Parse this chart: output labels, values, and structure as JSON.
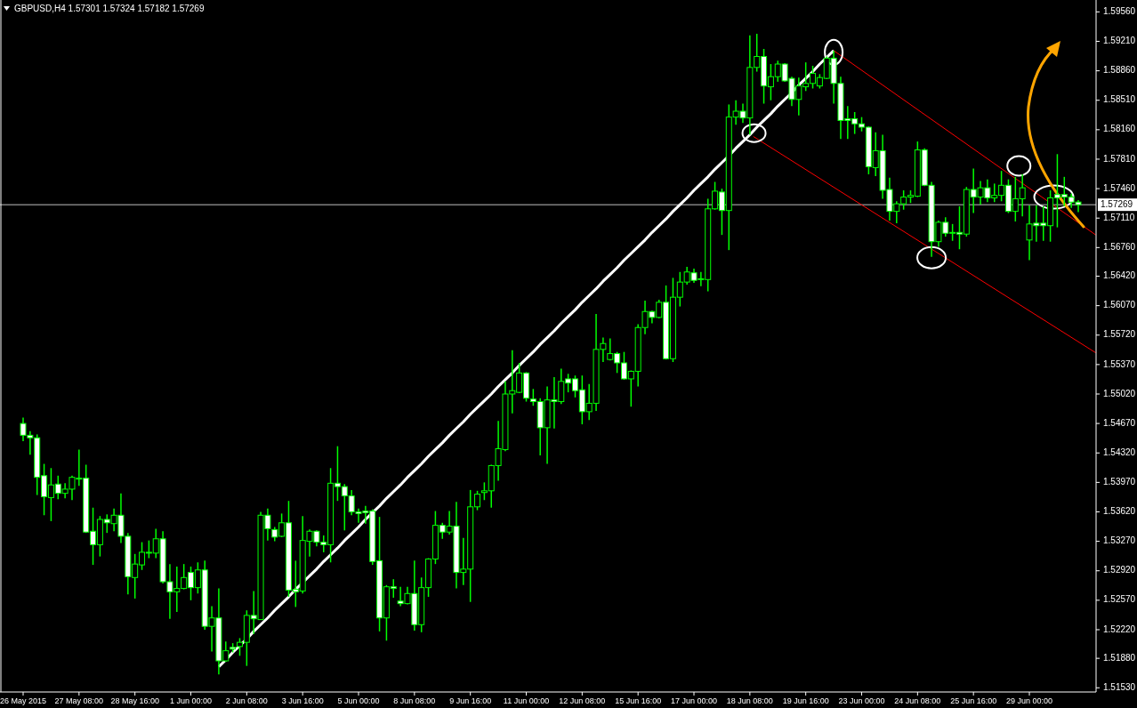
{
  "chart_data": {
    "type": "candlestick",
    "title": "GBPUSD,H4 1.57301 1.57324 1.57182 1.57269",
    "categories": [
      "26 May 2015",
      null,
      null,
      null,
      null,
      null,
      null,
      null,
      "27 May 08:00",
      null,
      null,
      null,
      null,
      null,
      null,
      null,
      "28 May 16:00",
      null,
      null,
      null,
      null,
      null,
      null,
      null,
      "1 Jun 00:00",
      null,
      null,
      null,
      null,
      null,
      null,
      null,
      "2 Jun 08:00",
      null,
      null,
      null,
      null,
      null,
      null,
      null,
      "3 Jun 16:00",
      null,
      null,
      null,
      null,
      null,
      null,
      null,
      "5 Jun 00:00",
      null,
      null,
      null,
      null,
      null,
      null,
      null,
      "8 Jun 08:00",
      null,
      null,
      null,
      null,
      null,
      null,
      null,
      "9 Jun 16:00",
      null,
      null,
      null,
      null,
      null,
      null,
      null,
      "11 Jun 00:00",
      null,
      null,
      null,
      null,
      null,
      null,
      null,
      "12 Jun 08:00",
      null,
      null,
      null,
      null,
      null,
      null,
      null,
      "15 Jun 16:00",
      null,
      null,
      null,
      null,
      null,
      null,
      null,
      "17 Jun 00:00",
      null,
      null,
      null,
      null,
      null,
      null,
      null,
      "18 Jun 08:00",
      null,
      null,
      null,
      null,
      null,
      null,
      null,
      "19 Jun 16:00",
      null,
      null,
      null,
      null,
      null,
      null,
      null,
      "23 Jun 00:00",
      null,
      null,
      null,
      null,
      null,
      null,
      null,
      "24 Jun 08:00",
      null,
      null,
      null,
      null,
      null,
      null,
      null,
      "25 Jun 16:00",
      null,
      null,
      null,
      null,
      null,
      null,
      null,
      "29 Jun 00:00",
      null,
      null,
      null,
      null,
      null,
      null,
      null
    ],
    "ohlc": [
      [
        1.5467,
        1.5474,
        1.5446,
        1.5453
      ],
      [
        1.5453,
        1.5458,
        1.543,
        1.545
      ],
      [
        1.545,
        1.5454,
        1.5382,
        1.5403
      ],
      [
        1.5405,
        1.5419,
        1.5358,
        1.538
      ],
      [
        1.5379,
        1.5414,
        1.5351,
        1.5394
      ],
      [
        1.5395,
        1.5405,
        1.5377,
        1.5384
      ],
      [
        1.5384,
        1.5396,
        1.5378,
        1.5389
      ],
      [
        1.5389,
        1.5405,
        1.5376,
        1.5403
      ],
      [
        1.5402,
        1.5436,
        1.5393,
        1.5401
      ],
      [
        1.5402,
        1.5418,
        1.5337,
        1.5338
      ],
      [
        1.5339,
        1.5367,
        1.5299,
        1.5323
      ],
      [
        1.5323,
        1.5357,
        1.5309,
        1.5353
      ],
      [
        1.5353,
        1.5359,
        1.5337,
        1.5349
      ],
      [
        1.5348,
        1.5366,
        1.5339,
        1.5358
      ],
      [
        1.5358,
        1.5384,
        1.5325,
        1.5333
      ],
      [
        1.5333,
        1.5337,
        1.5264,
        1.5285
      ],
      [
        1.5284,
        1.5312,
        1.5259,
        1.53
      ],
      [
        1.5299,
        1.5326,
        1.5293,
        1.5314
      ],
      [
        1.5313,
        1.5328,
        1.5307,
        1.5314
      ],
      [
        1.5313,
        1.5342,
        1.5307,
        1.533
      ],
      [
        1.533,
        1.5339,
        1.5277,
        1.5279
      ],
      [
        1.5279,
        1.53,
        1.5235,
        1.5267
      ],
      [
        1.5267,
        1.5297,
        1.5243,
        1.5271
      ],
      [
        1.5271,
        1.53,
        1.527,
        1.5284
      ],
      [
        1.529,
        1.5297,
        1.5257,
        1.5272
      ],
      [
        1.5272,
        1.5302,
        1.5265,
        1.5293
      ],
      [
        1.5293,
        1.5304,
        1.5222,
        1.5226
      ],
      [
        1.5226,
        1.525,
        1.5196,
        1.5236
      ],
      [
        1.5236,
        1.5271,
        1.5169,
        1.5185
      ],
      [
        1.5185,
        1.5208,
        1.5184,
        1.5197
      ],
      [
        1.5201,
        1.5206,
        1.5195,
        1.5199
      ],
      [
        1.5202,
        1.5212,
        1.5191,
        1.5207
      ],
      [
        1.5207,
        1.5245,
        1.5179,
        1.5239
      ],
      [
        1.5239,
        1.5268,
        1.5217,
        1.5235
      ],
      [
        1.5234,
        1.5362,
        1.5234,
        1.5358
      ],
      [
        1.5358,
        1.5366,
        1.5328,
        1.5342
      ],
      [
        1.5341,
        1.5344,
        1.5327,
        1.5332
      ],
      [
        1.5333,
        1.536,
        1.5332,
        1.5349
      ],
      [
        1.5349,
        1.5375,
        1.5261,
        1.5269
      ],
      [
        1.527,
        1.5304,
        1.5249,
        1.5267
      ],
      [
        1.5268,
        1.5357,
        1.5265,
        1.5328
      ],
      [
        1.5327,
        1.5341,
        1.5309,
        1.5339
      ],
      [
        1.5339,
        1.534,
        1.5321,
        1.5326
      ],
      [
        1.5326,
        1.5334,
        1.5314,
        1.5323
      ],
      [
        1.5323,
        1.5414,
        1.5302,
        1.5396
      ],
      [
        1.5396,
        1.544,
        1.5375,
        1.5392
      ],
      [
        1.5392,
        1.5395,
        1.534,
        1.5381
      ],
      [
        1.5381,
        1.5388,
        1.5358,
        1.5362
      ],
      [
        1.5362,
        1.5366,
        1.5349,
        1.536
      ],
      [
        1.5363,
        1.5369,
        1.5348,
        1.5361
      ],
      [
        1.5363,
        1.5365,
        1.5299,
        1.5303
      ],
      [
        1.5304,
        1.5356,
        1.522,
        1.5236
      ],
      [
        1.5236,
        1.5275,
        1.5209,
        1.5273
      ],
      [
        1.5273,
        1.5282,
        1.526,
        1.5271
      ],
      [
        1.5256,
        1.5273,
        1.525,
        1.5253
      ],
      [
        1.5253,
        1.5273,
        1.5252,
        1.5265
      ],
      [
        1.5265,
        1.5304,
        1.5221,
        1.5228
      ],
      [
        1.5228,
        1.5284,
        1.5219,
        1.5272
      ],
      [
        1.5272,
        1.5307,
        1.5261,
        1.5306
      ],
      [
        1.5306,
        1.5363,
        1.53,
        1.5346
      ],
      [
        1.5346,
        1.5349,
        1.533,
        1.5338
      ],
      [
        1.5338,
        1.5363,
        1.5335,
        1.5345
      ],
      [
        1.5345,
        1.5374,
        1.5271,
        1.529
      ],
      [
        1.529,
        1.5331,
        1.5275,
        1.5294
      ],
      [
        1.5294,
        1.5388,
        1.5255,
        1.5368
      ],
      [
        1.5368,
        1.5387,
        1.5364,
        1.5383
      ],
      [
        1.5385,
        1.5397,
        1.5376,
        1.5387
      ],
      [
        1.5387,
        1.5418,
        1.5367,
        1.5417
      ],
      [
        1.5417,
        1.547,
        1.5399,
        1.5437
      ],
      [
        1.5436,
        1.5517,
        1.5434,
        1.5502
      ],
      [
        1.5502,
        1.5554,
        1.5479,
        1.5506
      ],
      [
        1.5504,
        1.5539,
        1.5503,
        1.5527
      ],
      [
        1.5527,
        1.5528,
        1.5493,
        1.5497
      ],
      [
        1.5496,
        1.5508,
        1.5488,
        1.5493
      ],
      [
        1.5493,
        1.5497,
        1.5429,
        1.5462
      ],
      [
        1.5462,
        1.5511,
        1.5419,
        1.5495
      ],
      [
        1.5495,
        1.5522,
        1.5461,
        1.5493
      ],
      [
        1.5493,
        1.5532,
        1.549,
        1.5517
      ],
      [
        1.552,
        1.5526,
        1.5504,
        1.5515
      ],
      [
        1.552,
        1.5524,
        1.5498,
        1.5506
      ],
      [
        1.5507,
        1.5524,
        1.5466,
        1.5481
      ],
      [
        1.5481,
        1.5514,
        1.5471,
        1.5491
      ],
      [
        1.5491,
        1.5597,
        1.5482,
        1.5555
      ],
      [
        1.5555,
        1.5569,
        1.554,
        1.5562
      ],
      [
        1.5543,
        1.5568,
        1.5542,
        1.555
      ],
      [
        1.555,
        1.5552,
        1.5527,
        1.5539
      ],
      [
        1.5539,
        1.5552,
        1.5519,
        1.552
      ],
      [
        1.552,
        1.553,
        1.5487,
        1.5529
      ],
      [
        1.5529,
        1.5585,
        1.5511,
        1.5581
      ],
      [
        1.5581,
        1.5613,
        1.5573,
        1.56
      ],
      [
        1.56,
        1.5601,
        1.5586,
        1.5593
      ],
      [
        1.5593,
        1.5614,
        1.5592,
        1.5611
      ],
      [
        1.5611,
        1.5631,
        1.5543,
        1.5544
      ],
      [
        1.5544,
        1.564,
        1.554,
        1.5617
      ],
      [
        1.5617,
        1.5647,
        1.5606,
        1.5635
      ],
      [
        1.5635,
        1.5653,
        1.5632,
        1.5647
      ],
      [
        1.5646,
        1.5651,
        1.5634,
        1.5637
      ],
      [
        1.5638,
        1.5647,
        1.563,
        1.5639
      ],
      [
        1.5638,
        1.5734,
        1.5624,
        1.5722
      ],
      [
        1.5722,
        1.5754,
        1.5721,
        1.5743
      ],
      [
        1.5742,
        1.5746,
        1.5691,
        1.572
      ],
      [
        1.572,
        1.5846,
        1.5673,
        1.5831
      ],
      [
        1.5831,
        1.5851,
        1.5822,
        1.5838
      ],
      [
        1.5838,
        1.5847,
        1.5824,
        1.583
      ],
      [
        1.583,
        1.5928,
        1.581,
        1.589
      ],
      [
        1.589,
        1.593,
        1.5885,
        1.5903
      ],
      [
        1.5903,
        1.5912,
        1.5847,
        1.5868
      ],
      [
        1.5867,
        1.5894,
        1.5851,
        1.5879
      ],
      [
        1.5879,
        1.5898,
        1.5873,
        1.5894
      ],
      [
        1.5894,
        1.5895,
        1.5873,
        1.5874
      ],
      [
        1.5877,
        1.5879,
        1.5844,
        1.5852
      ],
      [
        1.5852,
        1.5878,
        1.5833,
        1.5868
      ],
      [
        1.5867,
        1.5896,
        1.5862,
        1.5871
      ],
      [
        1.5871,
        1.5892,
        1.5865,
        1.5883
      ],
      [
        1.5868,
        1.5882,
        1.5865,
        1.5878
      ],
      [
        1.5877,
        1.5903,
        1.5876,
        1.5901
      ],
      [
        1.5901,
        1.591,
        1.5847,
        1.5871
      ],
      [
        1.5871,
        1.5879,
        1.5805,
        1.5827
      ],
      [
        1.5829,
        1.5844,
        1.5805,
        1.5827
      ],
      [
        1.5829,
        1.5837,
        1.5811,
        1.5823
      ],
      [
        1.5823,
        1.5831,
        1.5814,
        1.5819
      ],
      [
        1.5819,
        1.582,
        1.5763,
        1.5772
      ],
      [
        1.5771,
        1.5813,
        1.5761,
        1.5791
      ],
      [
        1.5791,
        1.581,
        1.5734,
        1.5744
      ],
      [
        1.5745,
        1.5759,
        1.5708,
        1.5719
      ],
      [
        1.5719,
        1.5731,
        1.5705,
        1.5728
      ],
      [
        1.5728,
        1.5744,
        1.5721,
        1.5736
      ],
      [
        1.5736,
        1.5744,
        1.5729,
        1.5738
      ],
      [
        1.5737,
        1.5802,
        1.5736,
        1.5792
      ],
      [
        1.5792,
        1.5794,
        1.5749,
        1.575
      ],
      [
        1.575,
        1.5754,
        1.5665,
        1.5683
      ],
      [
        1.5683,
        1.5708,
        1.5677,
        1.5706
      ],
      [
        1.5706,
        1.5712,
        1.5689,
        1.5693
      ],
      [
        1.5693,
        1.5704,
        1.5684,
        1.5694
      ],
      [
        1.5694,
        1.5725,
        1.5674,
        1.5692
      ],
      [
        1.5692,
        1.5748,
        1.5689,
        1.5745
      ],
      [
        1.5745,
        1.577,
        1.5717,
        1.5736
      ],
      [
        1.5736,
        1.5755,
        1.5727,
        1.5747
      ],
      [
        1.5747,
        1.5757,
        1.573,
        1.5735
      ],
      [
        1.5735,
        1.5752,
        1.573,
        1.5738
      ],
      [
        1.5738,
        1.5767,
        1.5731,
        1.575
      ],
      [
        1.575,
        1.5757,
        1.5717,
        1.5719
      ],
      [
        1.5719,
        1.576,
        1.5707,
        1.5734
      ],
      [
        1.5734,
        1.5763,
        1.5713,
        1.5747
      ],
      [
        1.5685,
        1.5726,
        1.5661,
        1.5704
      ],
      [
        1.5705,
        1.5726,
        1.5683,
        1.5702
      ],
      [
        1.5705,
        1.5725,
        1.5684,
        1.5702
      ],
      [
        1.5702,
        1.5744,
        1.5683,
        1.5735
      ],
      [
        1.5739,
        1.5787,
        1.57,
        1.5735
      ],
      [
        1.5739,
        1.576,
        1.5725,
        1.5736
      ],
      [
        1.5736,
        1.574,
        1.5723,
        1.573
      ],
      [
        1.57301,
        1.57324,
        1.57182,
        1.57269
      ]
    ],
    "series": [
      {
        "type": "line",
        "color": "#ffffff",
        "values": [
          null,
          null,
          null,
          null,
          null,
          null,
          null,
          null,
          null,
          null,
          null,
          null,
          null,
          null,
          null,
          null,
          null,
          null,
          null,
          null,
          null,
          null,
          null,
          null,
          null,
          null,
          null,
          null,
          1.5178,
          1.5186,
          1.5195,
          1.5203,
          1.5211,
          1.522,
          1.5228,
          1.5236,
          1.5245,
          1.5253,
          1.5261,
          1.527,
          1.5278,
          1.5286,
          1.5294,
          1.5303,
          1.5311,
          1.5319,
          1.5328,
          1.5336,
          1.5344,
          1.5353,
          1.5361,
          1.5369,
          1.5378,
          1.5386,
          1.5394,
          1.5403,
          1.5411,
          1.5419,
          1.5428,
          1.5436,
          1.5444,
          1.5453,
          1.5461,
          1.5469,
          1.5478,
          1.5486,
          1.5494,
          1.5502,
          1.5511,
          1.5519,
          1.5527,
          1.5536,
          1.5544,
          1.5552,
          1.5561,
          1.5569,
          1.5577,
          1.5586,
          1.5594,
          1.5602,
          1.5611,
          1.5619,
          1.5627,
          1.5636,
          1.5644,
          1.5652,
          1.5661,
          1.5669,
          1.5677,
          1.5685,
          1.5694,
          1.5702,
          1.571,
          1.5719,
          1.5727,
          1.5735,
          1.5744,
          1.5752,
          1.576,
          1.5769,
          1.5777,
          1.5785,
          1.5794,
          1.5802,
          1.581,
          1.5819,
          1.5827,
          1.5835,
          1.5844,
          1.5852,
          1.586,
          1.5869,
          1.5877,
          1.5885,
          1.5894,
          1.5902,
          1.591,
          null,
          null,
          null,
          null,
          null,
          null,
          null,
          null,
          null,
          null,
          null,
          null,
          null,
          null,
          null,
          null,
          null,
          null,
          null,
          null,
          null,
          null,
          null,
          null,
          null,
          null,
          null,
          null,
          null,
          null,
          null,
          null,
          null,
          null,
          null
        ]
      }
    ],
    "ylim": [
      1.5148,
      1.5968
    ],
    "yticks": [
      {
        "value": 1.5153,
        "label": "1.51530"
      },
      {
        "value": 1.5188,
        "label": "1.51880"
      },
      {
        "value": 1.5222,
        "label": "1.52220"
      },
      {
        "value": 1.5257,
        "label": "1.52570"
      },
      {
        "value": 1.5292,
        "label": "1.52920"
      },
      {
        "value": 1.5327,
        "label": "1.53270"
      },
      {
        "value": 1.5362,
        "label": "1.53620"
      },
      {
        "value": 1.5397,
        "label": "1.53970"
      },
      {
        "value": 1.5432,
        "label": "1.54320"
      },
      {
        "value": 1.5467,
        "label": "1.54670"
      },
      {
        "value": 1.5502,
        "label": "1.55020"
      },
      {
        "value": 1.5537,
        "label": "1.55370"
      },
      {
        "value": 1.5572,
        "label": "1.55720"
      },
      {
        "value": 1.5607,
        "label": "1.56070"
      },
      {
        "value": 1.5642,
        "label": "1.56420"
      },
      {
        "value": 1.5676,
        "label": "1.56760"
      },
      {
        "value": 1.5711,
        "label": "1.57110"
      },
      {
        "value": 1.5746,
        "label": "1.57460"
      },
      {
        "value": 1.5781,
        "label": "1.57810"
      },
      {
        "value": 1.5816,
        "label": "1.58160"
      },
      {
        "value": 1.5851,
        "label": "1.58510"
      },
      {
        "value": 1.5886,
        "label": "1.58860"
      },
      {
        "value": 1.5921,
        "label": "1.59210"
      },
      {
        "value": 1.5956,
        "label": "1.59560"
      }
    ],
    "ref_lines": [
      {
        "axis": "y",
        "value": 1.57269,
        "label": "1.57269",
        "color": "#c0c0c0"
      }
    ]
  }
}
